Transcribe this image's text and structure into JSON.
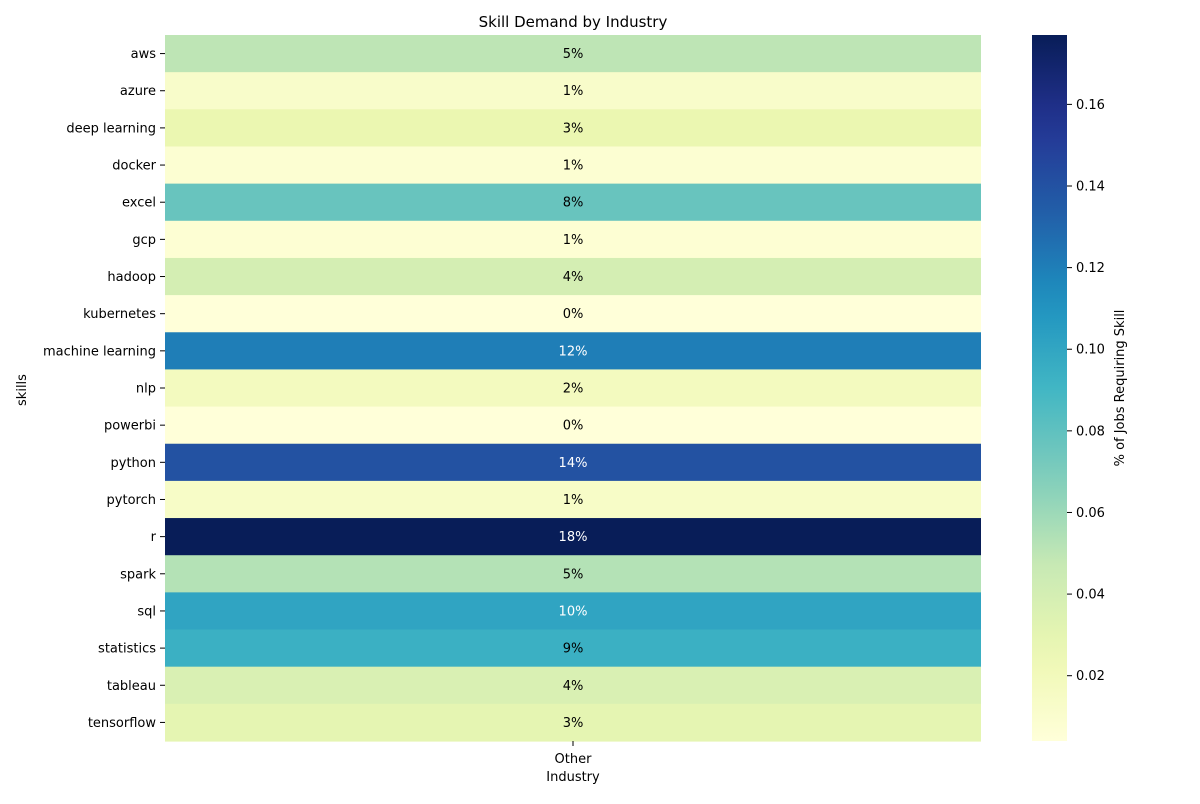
{
  "chart_data": {
    "type": "heatmap",
    "title": "Skill Demand by Industry",
    "xlabel": "Industry",
    "ylabel": "skills",
    "columns": [
      "Other"
    ],
    "rows": [
      "aws",
      "azure",
      "deep learning",
      "docker",
      "excel",
      "gcp",
      "hadoop",
      "kubernetes",
      "machine learning",
      "nlp",
      "powerbi",
      "python",
      "pytorch",
      "r",
      "spark",
      "sql",
      "statistics",
      "tableau",
      "tensorflow"
    ],
    "values": [
      0.05,
      0.012,
      0.027,
      0.008,
      0.077,
      0.007,
      0.04,
      0.004,
      0.12,
      0.018,
      0.004,
      0.14,
      0.014,
      0.177,
      0.053,
      0.101,
      0.094,
      0.037,
      0.03
    ],
    "cell_labels": [
      "5%",
      "1%",
      "3%",
      "1%",
      "8%",
      "1%",
      "4%",
      "0%",
      "12%",
      "2%",
      "0%",
      "14%",
      "1%",
      "18%",
      "5%",
      "10%",
      "9%",
      "4%",
      "3%"
    ],
    "colorbar": {
      "label": "% of Jobs Requiring Skill",
      "range": [
        0.004,
        0.177
      ],
      "ticks": [
        "0.02",
        "0.04",
        "0.06",
        "0.08",
        "0.10",
        "0.12",
        "0.14",
        "0.16"
      ],
      "colormap": "YlGnBu"
    }
  }
}
